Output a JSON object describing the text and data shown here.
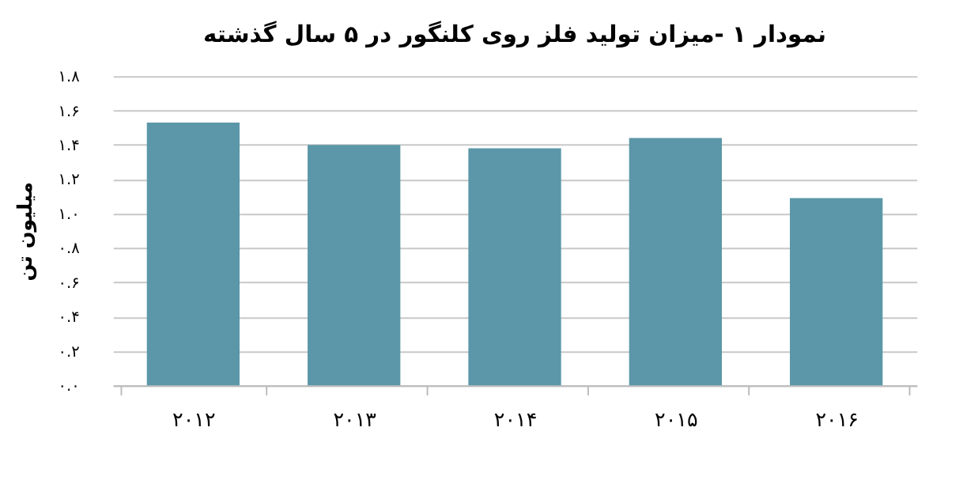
{
  "chart_data": {
    "type": "bar",
    "title": "نمودار ۱ -میزان تولید فلز روی کلنگور در ۵ سال گذشته",
    "ylabel": "میلیون تن",
    "categories": [
      "۲۰۱۲",
      "۲۰۱۳",
      "۲۰۱۴",
      "۲۰۱۵",
      "۲۰۱۶"
    ],
    "values": [
      1.53,
      1.4,
      1.38,
      1.44,
      1.09
    ],
    "color": "#5b97a8",
    "ylim": [
      0,
      1.8
    ],
    "yticks": [
      {
        "value": 0,
        "label": "۰.۰"
      },
      {
        "value": 0.2,
        "label": "۰.۲"
      },
      {
        "value": 0.4,
        "label": "۰.۴"
      },
      {
        "value": 0.6,
        "label": "۰.۶"
      },
      {
        "value": 0.8,
        "label": "۰.۸"
      },
      {
        "value": 1.0,
        "label": "۱.۰"
      },
      {
        "value": 1.2,
        "label": "۱.۲"
      },
      {
        "value": 1.4,
        "label": "۱.۴"
      },
      {
        "value": 1.6,
        "label": "۱.۶"
      },
      {
        "value": 1.8,
        "label": "۱.۸"
      }
    ],
    "grid": "y"
  }
}
